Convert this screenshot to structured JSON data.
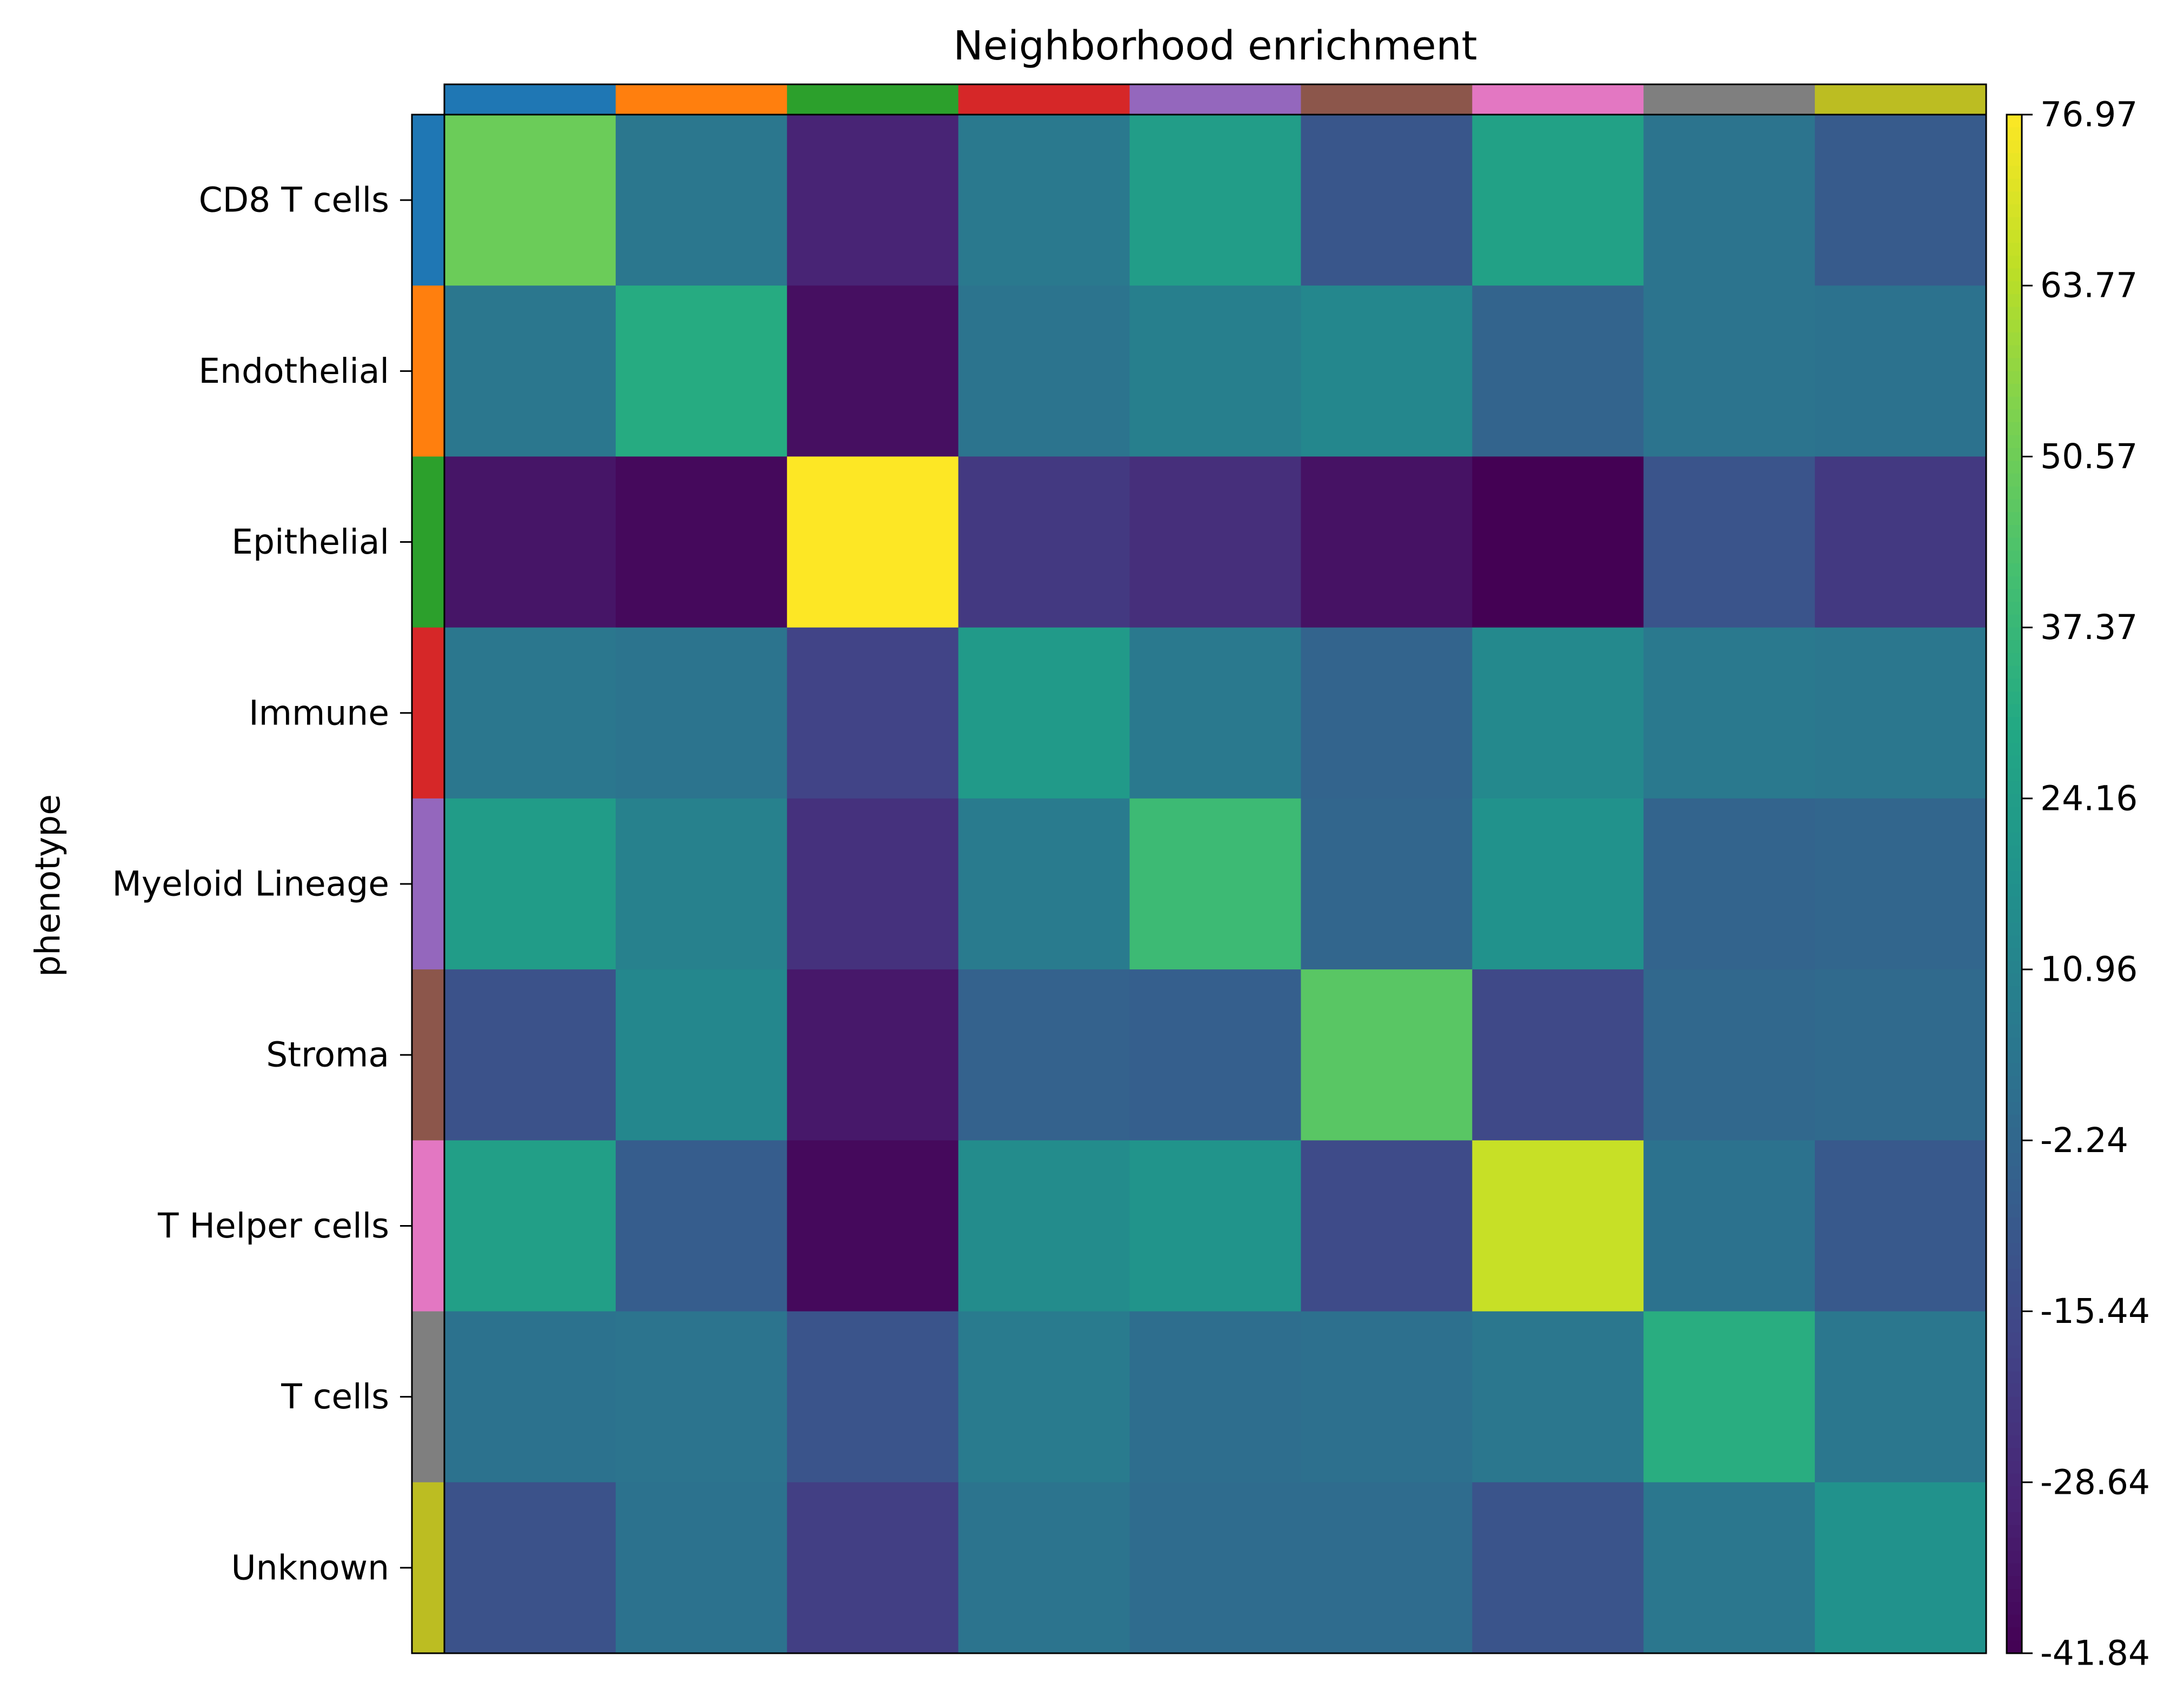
{
  "chart_data": {
    "type": "heatmap",
    "title": "Neighborhood enrichment",
    "xlabel": "",
    "ylabel": "phenotype",
    "rows": [
      "CD8 T cells",
      "Endothelial",
      "Epithelial",
      "Immune",
      "Myeloid Lineage",
      "Stroma",
      "T Helper cells",
      "T cells",
      "Unknown"
    ],
    "columns": [
      "CD8 T cells",
      "Endothelial",
      "Epithelial",
      "Immune",
      "Myeloid Lineage",
      "Stroma",
      "T Helper cells",
      "T cells",
      "Unknown"
    ],
    "category_colors": [
      "#1f77b4",
      "#ff7f0e",
      "#2ca02c",
      "#d62728",
      "#9467bd",
      "#8c564b",
      "#e377c2",
      "#7f7f7f",
      "#bcbd22"
    ],
    "values": [
      [
        50,
        5,
        -30,
        6,
        24,
        -10,
        26,
        4,
        -8
      ],
      [
        5,
        31,
        -37,
        4,
        9,
        13,
        -4,
        4,
        3
      ],
      [
        -35,
        -39,
        77,
        -22,
        -26,
        -36,
        -42,
        -11,
        -22
      ],
      [
        5,
        4,
        -18,
        22,
        6,
        -4,
        14,
        6,
        5
      ],
      [
        23,
        10,
        -25,
        7,
        39,
        -3,
        18,
        -4,
        -3
      ],
      [
        -12,
        13,
        -34,
        -5,
        -6,
        46,
        -16,
        -2,
        -1
      ],
      [
        25,
        -7,
        -39,
        15,
        19,
        -15,
        67,
        3,
        -9
      ],
      [
        3,
        4,
        -11,
        7,
        1,
        2,
        5,
        32,
        5
      ],
      [
        -12,
        3,
        -20,
        4,
        0,
        0,
        -11,
        5,
        18
      ]
    ],
    "colorbar": {
      "colormap": "viridis",
      "min": -41.84,
      "max": 76.97,
      "ticks": [
        "76.97",
        "63.77",
        "50.57",
        "37.37",
        "24.16",
        "10.96",
        "-2.24",
        "-15.44",
        "-28.64",
        "-41.84"
      ]
    }
  }
}
